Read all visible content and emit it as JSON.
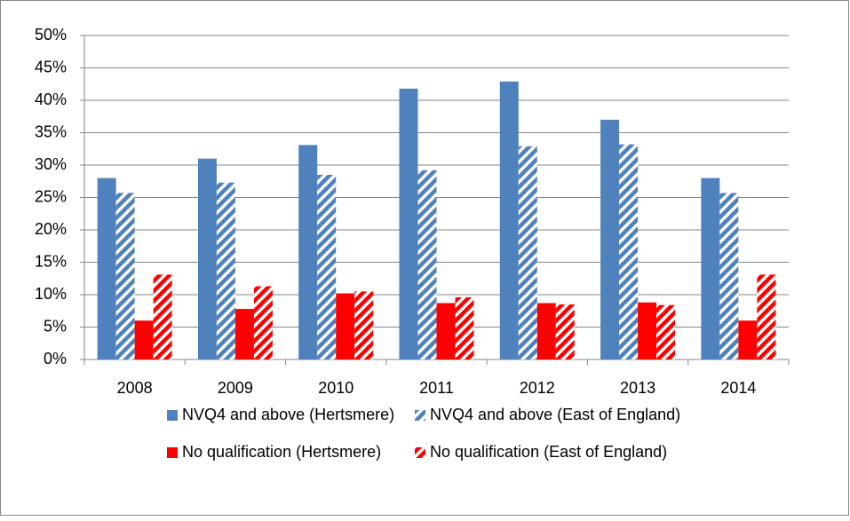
{
  "chart_data": {
    "type": "bar",
    "categories": [
      "2008",
      "2009",
      "2010",
      "2011",
      "2012",
      "2013",
      "2014"
    ],
    "series": [
      {
        "name": "NVQ4 and above (Hertsmere)",
        "color": "#4f81bd",
        "hatch": false,
        "values": [
          28,
          31,
          33.1,
          41.8,
          42.9,
          37,
          28
        ]
      },
      {
        "name": "NVQ4 and above (East of England)",
        "color": "#4f81bd",
        "hatch": true,
        "values": [
          25.7,
          27.3,
          28.5,
          29.2,
          32.9,
          33.2,
          25.7
        ]
      },
      {
        "name": "No qualification (Hertsmere)",
        "color": "#ff0000",
        "hatch": false,
        "values": [
          6,
          7.8,
          10.2,
          8.7,
          8.7,
          8.8,
          6
        ]
      },
      {
        "name": "No qualification (East of England)",
        "color": "#ff0000",
        "hatch": true,
        "values": [
          13.1,
          11.3,
          10.5,
          9.6,
          8.5,
          8.4,
          13.1
        ]
      }
    ],
    "ylim": [
      0,
      50
    ],
    "yticks": [
      {
        "value": 0,
        "label": "0%"
      },
      {
        "value": 5,
        "label": "5%"
      },
      {
        "value": 10,
        "label": "10%"
      },
      {
        "value": 15,
        "label": "15%"
      },
      {
        "value": 20,
        "label": "20%"
      },
      {
        "value": 25,
        "label": "25%"
      },
      {
        "value": 30,
        "label": "30%"
      },
      {
        "value": 35,
        "label": "35%"
      },
      {
        "value": 40,
        "label": "40%"
      },
      {
        "value": 45,
        "label": "45%"
      },
      {
        "value": 50,
        "label": "50%"
      }
    ],
    "grid": true,
    "legend": "bottom"
  }
}
